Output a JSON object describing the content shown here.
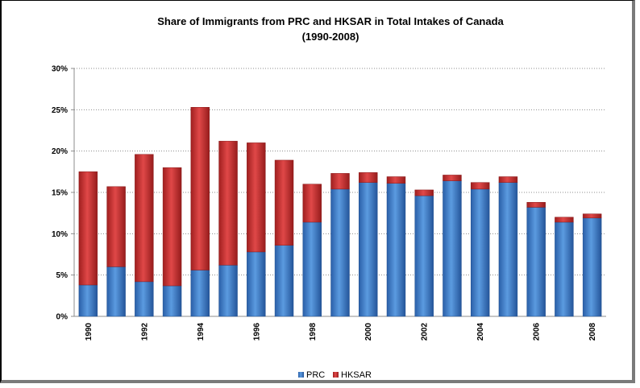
{
  "chart_data": {
    "type": "bar",
    "stacked": true,
    "title": "Share of Immigrants from PRC and HKSAR in Total Intakes of Canada",
    "subtitle": "(1990-2008)",
    "categories": [
      "1990",
      "1991",
      "1992",
      "1993",
      "1994",
      "1995",
      "1996",
      "1997",
      "1998",
      "1999",
      "2000",
      "2001",
      "2002",
      "2003",
      "2004",
      "2005",
      "2006",
      "2007",
      "2008"
    ],
    "x_tick_labels": [
      "1990",
      "",
      "1992",
      "",
      "1994",
      "",
      "1996",
      "",
      "1998",
      "",
      "2000",
      "",
      "2002",
      "",
      "2004",
      "",
      "2006",
      "",
      "2008"
    ],
    "series": [
      {
        "name": "PRC",
        "color": "#3a78c8",
        "values": [
          3.8,
          6.0,
          4.2,
          3.7,
          5.6,
          6.2,
          7.8,
          8.6,
          11.4,
          15.4,
          16.2,
          16.1,
          14.6,
          16.4,
          15.4,
          16.2,
          13.2,
          11.4,
          11.9
        ]
      },
      {
        "name": "HKSAR",
        "color": "#c62d2d",
        "values": [
          13.7,
          9.7,
          15.4,
          14.3,
          19.7,
          15.0,
          13.2,
          10.3,
          4.6,
          1.9,
          1.2,
          0.8,
          0.7,
          0.7,
          0.8,
          0.7,
          0.6,
          0.6,
          0.5
        ]
      }
    ],
    "ylim": [
      0,
      30
    ],
    "y_ticks": [
      0,
      5,
      10,
      15,
      20,
      25,
      30
    ],
    "y_tick_labels": [
      "0%",
      "5%",
      "10%",
      "15%",
      "20%",
      "25%",
      "30%"
    ],
    "xlabel": "",
    "ylabel": "",
    "grid": true,
    "legend_position": "bottom"
  }
}
